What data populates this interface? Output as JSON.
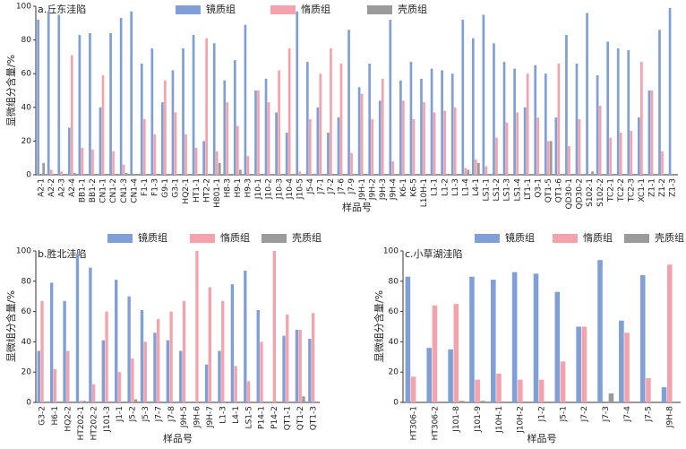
{
  "chart_data": [
    {
      "type": "bar",
      "title": "a.丘东洼陷",
      "xlabel": "样品号",
      "ylabel": "显微组分含量/%",
      "categories": [
        "A2-1",
        "A2-2",
        "A2-3",
        "A2-4",
        "BB1-1",
        "BB1-2",
        "CN1-1",
        "CN1-2",
        "CN1-3",
        "CN1-4",
        "F1-1",
        "F1-3",
        "G9-1",
        "G3-1",
        "HQ2-1",
        "HT1-1",
        "HT2-2",
        "H801-1",
        "H8-3",
        "H9-1",
        "H9-3",
        "J10-1",
        "J10-2",
        "J10-3",
        "J10-4",
        "J10-5",
        "J5-4",
        "J7-1",
        "J7-2",
        "J7-6",
        "J7-9",
        "J9H-1",
        "J9H-2",
        "J9H-3",
        "J9H-4",
        "K6-1",
        "K6-5",
        "L10H-1",
        "L1-1",
        "L1-2",
        "L1-3",
        "L1-4",
        "L4-1",
        "LS1-1",
        "LS1-2",
        "LS1-3",
        "LS1-4",
        "LT1-1",
        "Q3-1",
        "QT1-5",
        "QT1-6",
        "QD30-1",
        "QD30-2",
        "S102-1",
        "S102-2",
        "TC2-1",
        "TC2-2",
        "TC2-3",
        "XC1-1",
        "Z1-1",
        "Z1-2",
        "Z1-3"
      ],
      "series": [
        {
          "name": "镜质组",
          "color": "#7f9fd6",
          "values": [
            92,
            97,
            95,
            28,
            83,
            84,
            40,
            84,
            93,
            97,
            66,
            75,
            43,
            62,
            75,
            83,
            20,
            78,
            56,
            68,
            89,
            50,
            57,
            37,
            25,
            97,
            67,
            40,
            25,
            34,
            86,
            52,
            66,
            44,
            92,
            56,
            67,
            57,
            63,
            62,
            60,
            92,
            81,
            95,
            78,
            67,
            63,
            40,
            65,
            60,
            34,
            83,
            66,
            96,
            59,
            79,
            75,
            74,
            34,
            50,
            86,
            99
          ]
        },
        {
          "name": "惰质组",
          "color": "#f4a3ad",
          "values": [
            0,
            3,
            2,
            71,
            16,
            15,
            59,
            14,
            6,
            0,
            33,
            24,
            56,
            37,
            24,
            16,
            81,
            14,
            43,
            29,
            11,
            50,
            43,
            62,
            75,
            2,
            33,
            60,
            75,
            66,
            13,
            48,
            33,
            57,
            8,
            44,
            33,
            43,
            37,
            38,
            40,
            4,
            9,
            5,
            22,
            31,
            37,
            60,
            34,
            20,
            66,
            17,
            33,
            0,
            41,
            22,
            25,
            26,
            67,
            50,
            14,
            0
          ]
        },
        {
          "name": "壳质组",
          "color": "#9b9b9b",
          "values": [
            7,
            0,
            0,
            1,
            0,
            0,
            0,
            0,
            1,
            0,
            0,
            0,
            0,
            0,
            0,
            0,
            0,
            7,
            0,
            3,
            0,
            0,
            0,
            0,
            0,
            0,
            0,
            0,
            0,
            0,
            0,
            0,
            0,
            0,
            0,
            0,
            0,
            0,
            0,
            0,
            0,
            3,
            7,
            0,
            0,
            0,
            0,
            0,
            0,
            20,
            0,
            0,
            0,
            2,
            0,
            0,
            0,
            0,
            0,
            0,
            0,
            0
          ]
        }
      ],
      "ylim": [
        0,
        100
      ],
      "yticks": [
        0,
        20,
        40,
        60,
        80,
        100
      ],
      "legend": "top"
    },
    {
      "type": "bar",
      "title": "b.胜北洼陷",
      "xlabel": "样品号",
      "ylabel": "显微组分含量/%",
      "categories": [
        "G3-2",
        "H6-1",
        "HQ2-2",
        "HT202-1",
        "HT202-2",
        "J101-3",
        "J1-1",
        "J5-2",
        "J5-3",
        "J7-7",
        "J7-8",
        "J9H-5",
        "J9H-6",
        "J9H-7",
        "L1-3",
        "L4-1",
        "LS1-5",
        "P14-1",
        "P14-2",
        "QT1-1",
        "QT1-2",
        "QT1-3"
      ],
      "series": [
        {
          "name": "镜质组",
          "color": "#7f9fd6",
          "values": [
            34,
            79,
            67,
            98,
            89,
            41,
            81,
            70,
            61,
            46,
            41,
            34,
            0,
            25,
            34,
            78,
            87,
            61,
            0,
            44,
            48,
            42
          ]
        },
        {
          "name": "惰质组",
          "color": "#f4a3ad",
          "values": [
            67,
            22,
            34,
            1,
            12,
            60,
            20,
            29,
            40,
            55,
            60,
            67,
            100,
            76,
            67,
            24,
            14,
            40,
            100,
            58,
            48,
            59
          ]
        },
        {
          "name": "壳质组",
          "color": "#9b9b9b",
          "values": [
            0,
            0,
            0,
            1,
            0,
            0,
            0,
            2,
            0,
            0,
            0,
            0,
            0,
            0,
            0,
            0,
            0,
            0,
            0,
            0,
            4,
            0
          ]
        }
      ],
      "ylim": [
        0,
        100
      ],
      "yticks": [
        0,
        20,
        40,
        60,
        80,
        100
      ],
      "legend": "top"
    },
    {
      "type": "bar",
      "title": "c.小草湖洼陷",
      "xlabel": "样品号",
      "ylabel": "显微组分含量/%",
      "categories": [
        "HT306-1",
        "HT306-2",
        "J101-8",
        "J101-9",
        "J10H-1",
        "J10H-2",
        "J1-2",
        "J5-1",
        "J7-2",
        "J7-3",
        "J7-4",
        "J7-5",
        "J9H-8"
      ],
      "series": [
        {
          "name": "镜质组",
          "color": "#7f9fd6",
          "values": [
            83,
            36,
            35,
            83,
            81,
            86,
            85,
            73,
            50,
            94,
            54,
            84,
            10
          ]
        },
        {
          "name": "惰质组",
          "color": "#f4a3ad",
          "values": [
            17,
            64,
            65,
            15,
            19,
            15,
            15,
            27,
            50,
            0,
            46,
            16,
            91
          ]
        },
        {
          "name": "壳质组",
          "color": "#9b9b9b",
          "values": [
            0,
            0,
            1,
            1,
            0,
            0,
            0,
            0,
            0,
            6,
            0,
            0,
            0
          ]
        }
      ],
      "ylim": [
        0,
        100
      ],
      "yticks": [
        0,
        20,
        40,
        60,
        80,
        100
      ],
      "legend": "top"
    }
  ]
}
